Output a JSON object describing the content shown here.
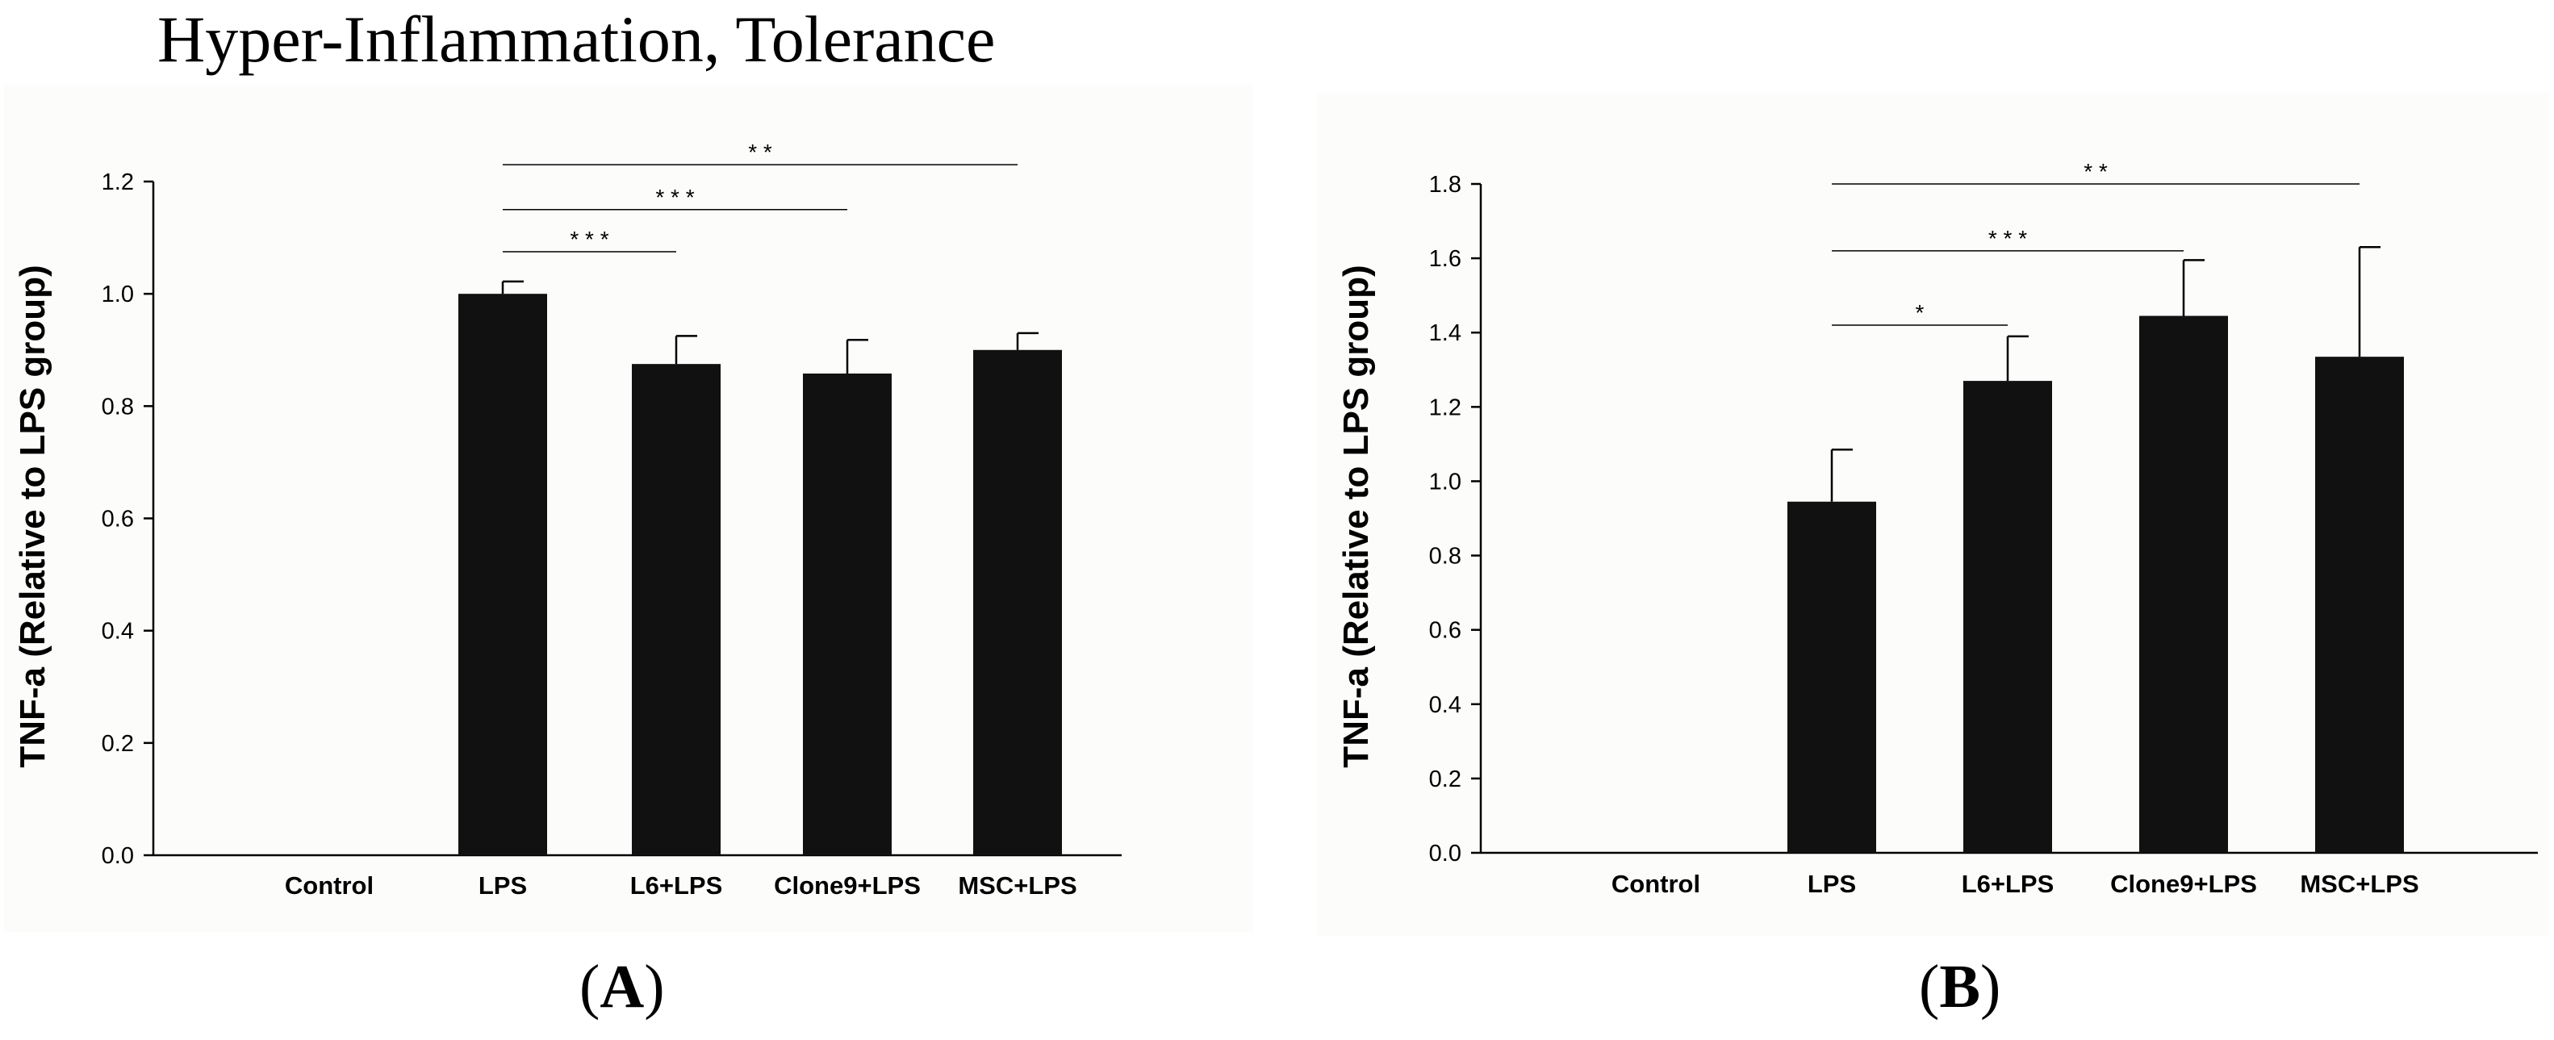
{
  "figure": {
    "title": "Hyper-Inflammation, Tolerance"
  },
  "chart_data": [
    {
      "type": "bar",
      "panel_label": "A",
      "categories": [
        "Control",
        "LPS",
        "L6+LPS",
        "Clone9+LPS",
        "MSC+LPS"
      ],
      "values": [
        null,
        1.0,
        0.875,
        0.858,
        0.9
      ],
      "errors": [
        null,
        0.022,
        0.05,
        0.06,
        0.03
      ],
      "ylabel": "TNF-a (Relative to LPS group)",
      "xlabel": "",
      "ylim": [
        0,
        1.2
      ],
      "yticks": [
        0.0,
        0.2,
        0.4,
        0.6,
        0.8,
        1.0,
        1.2
      ],
      "bar_color": "#111111",
      "grid": false,
      "significance": [
        {
          "from": "LPS",
          "to": "L6+LPS",
          "label": "* * *",
          "y": 1.075
        },
        {
          "from": "LPS",
          "to": "Clone9+LPS",
          "label": "* * *",
          "y": 1.15
        },
        {
          "from": "LPS",
          "to": "MSC+LPS",
          "label": "* *",
          "y": 1.23
        }
      ]
    },
    {
      "type": "bar",
      "panel_label": "B",
      "categories": [
        "Control",
        "LPS",
        "L6+LPS",
        "Clone9+LPS",
        "MSC+LPS"
      ],
      "values": [
        null,
        0.945,
        1.27,
        1.445,
        1.335
      ],
      "errors": [
        null,
        0.14,
        0.12,
        0.15,
        0.295
      ],
      "ylabel": "TNF-a (Relative to LPS group)",
      "xlabel": "",
      "ylim": [
        0,
        1.8
      ],
      "yticks": [
        0.0,
        0.2,
        0.4,
        0.6,
        0.8,
        1.0,
        1.2,
        1.4,
        1.6,
        1.8
      ],
      "bar_color": "#111111",
      "grid": false,
      "significance": [
        {
          "from": "LPS",
          "to": "L6+LPS",
          "label": "*",
          "y": 1.42
        },
        {
          "from": "LPS",
          "to": "Clone9+LPS",
          "label": "* * *",
          "y": 1.62
        },
        {
          "from": "LPS",
          "to": "MSC+LPS",
          "label": "* *",
          "y": 1.8
        }
      ]
    }
  ]
}
